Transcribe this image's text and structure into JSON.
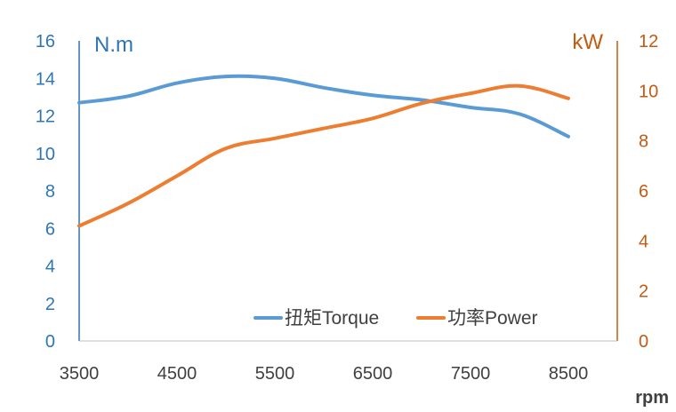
{
  "chart_data": {
    "type": "line",
    "title": "",
    "xlabel": "rpm",
    "ylabel_left": "N.m",
    "ylabel_right": "kW",
    "xlim": [
      3500,
      9000
    ],
    "x_ticks": [
      "3500",
      "4500",
      "5500",
      "6500",
      "7500",
      "8500"
    ],
    "ylim_left": [
      0,
      16
    ],
    "y_ticks_left": [
      "0",
      "2",
      "4",
      "6",
      "8",
      "10",
      "12",
      "14",
      "16"
    ],
    "ylim_right": [
      0,
      12
    ],
    "y_ticks_right": [
      "0",
      "2",
      "4",
      "6",
      "8",
      "10",
      "12"
    ],
    "grid": false,
    "legend_position": "bottom-right",
    "series": [
      {
        "name": "扭矩Torque",
        "axis": "left",
        "color": "#5B9BD5",
        "x": [
          3500,
          4000,
          4500,
          5000,
          5500,
          6000,
          6500,
          7000,
          7500,
          8000,
          8500
        ],
        "y": [
          12.7,
          13.05,
          13.75,
          14.1,
          14.0,
          13.5,
          13.1,
          12.85,
          12.45,
          12.1,
          10.9
        ]
      },
      {
        "name": "功率Power",
        "axis": "right",
        "color": "#ED7D31",
        "x": [
          3500,
          4000,
          4500,
          5000,
          5500,
          6000,
          6500,
          7000,
          7500,
          8000,
          8500
        ],
        "y": [
          4.6,
          5.5,
          6.6,
          7.7,
          8.1,
          8.5,
          8.9,
          9.5,
          9.9,
          10.2,
          9.7
        ]
      }
    ],
    "colors": {
      "left_axis": "#2E75B6",
      "right_axis": "#C55A11",
      "x_axis": "#404040"
    }
  }
}
